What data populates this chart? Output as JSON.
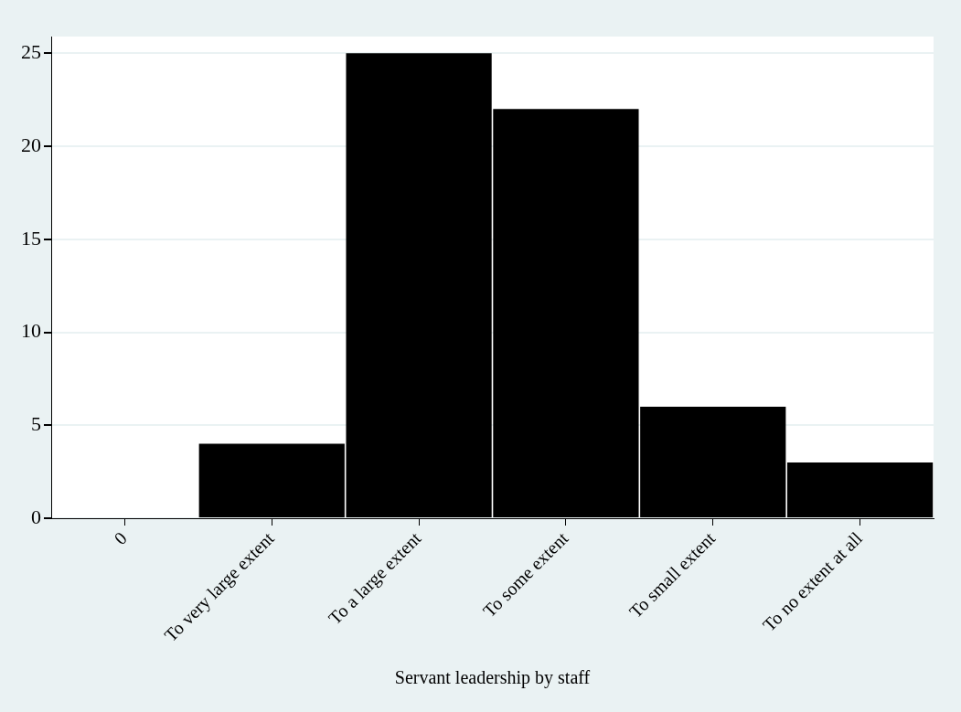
{
  "chart_data": {
    "type": "bar",
    "xlabel": "Servant leadership by staff",
    "categories": [
      "0",
      "To very large extent",
      "To a large extent",
      "To some extent",
      "To small extent",
      "To no extent at all"
    ],
    "values": [
      null,
      4,
      25,
      22,
      6,
      3
    ],
    "color": "#000000",
    "ylim": [
      0,
      25.9
    ],
    "yticks": [
      0,
      5,
      10,
      15,
      20,
      25
    ],
    "grid": "y",
    "legend": false
  }
}
